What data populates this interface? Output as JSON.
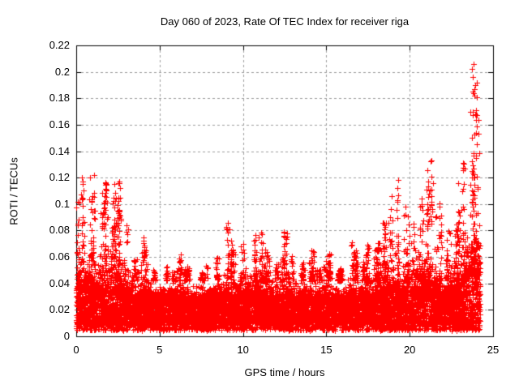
{
  "page": {
    "background_color": "#ffffff",
    "text_color": "#000000"
  },
  "chart_data": {
    "type": "scatter",
    "title": "Day 060 of 2023, Rate Of TEC Index for receiver riga",
    "xlabel": "GPS time / hours",
    "ylabel": "ROTI / TECUs",
    "xlim": [
      0,
      25
    ],
    "ylim": [
      0,
      0.22
    ],
    "xticks": [
      0,
      5,
      10,
      15,
      20,
      25
    ],
    "xtick_labels": [
      "0",
      "5",
      "10",
      "15",
      "20",
      "25"
    ],
    "yticks": [
      0,
      0.02,
      0.04,
      0.06,
      0.08,
      0.1,
      0.12,
      0.14,
      0.16,
      0.18,
      0.2,
      0.22
    ],
    "ytick_labels": [
      "0",
      "0.02",
      "0.04",
      "0.06",
      "0.08",
      "0.1",
      "0.12",
      "0.14",
      "0.16",
      "0.18",
      "0.2",
      "0.22"
    ],
    "grid": true,
    "grid_style": "dashed",
    "grid_color": "#9c9c9c",
    "axis_color": "#000000",
    "legend": "none",
    "series": [
      {
        "name": "ROTI",
        "marker": "+",
        "color": "#ff0000",
        "marker_size_px": 7,
        "time_start_hours": 0,
        "time_end_hours": 24.22,
        "baseline_band": {
          "floor": 0.004,
          "core_low": 0.01,
          "core_high": 0.035,
          "upper": 0.05
        },
        "envelope_halfhour_max": [
          [
            0,
            0.11
          ],
          [
            0.5,
            0.122
          ],
          [
            1,
            0.122
          ],
          [
            1.5,
            0.117
          ],
          [
            2,
            0.085
          ],
          [
            2.5,
            0.117
          ],
          [
            3,
            0.096
          ],
          [
            3.5,
            0.062
          ],
          [
            4,
            0.075
          ],
          [
            4.5,
            0.056
          ],
          [
            5,
            0.052
          ],
          [
            5.5,
            0.058
          ],
          [
            6,
            0.062
          ],
          [
            6.5,
            0.058
          ],
          [
            7,
            0.052
          ],
          [
            7.5,
            0.058
          ],
          [
            8,
            0.052
          ],
          [
            8.5,
            0.066
          ],
          [
            9,
            0.086
          ],
          [
            9.5,
            0.072
          ],
          [
            10,
            0.077
          ],
          [
            10.5,
            0.081
          ],
          [
            11,
            0.081
          ],
          [
            11.5,
            0.066
          ],
          [
            12,
            0.06
          ],
          [
            12.5,
            0.081
          ],
          [
            13,
            0.063
          ],
          [
            13.5,
            0.057
          ],
          [
            14,
            0.067
          ],
          [
            14.5,
            0.057
          ],
          [
            15,
            0.063
          ],
          [
            15.5,
            0.057
          ],
          [
            16,
            0.052
          ],
          [
            16.5,
            0.076
          ],
          [
            17,
            0.067
          ],
          [
            17.5,
            0.071
          ],
          [
            18,
            0.077
          ],
          [
            18.5,
            0.091
          ],
          [
            19,
            0.118
          ],
          [
            19.5,
            0.106
          ],
          [
            20,
            0.097
          ],
          [
            20.5,
            0.112
          ],
          [
            21,
            0.133
          ],
          [
            21.5,
            0.101
          ],
          [
            22,
            0.083
          ],
          [
            22.5,
            0.093
          ],
          [
            23,
            0.13
          ],
          [
            23.5,
            0.206
          ],
          [
            24,
            0.196
          ]
        ],
        "notable_peaks": [
          [
            0.35,
            0.12
          ],
          [
            1.05,
            0.122
          ],
          [
            1.75,
            0.116
          ],
          [
            2.3,
            0.115
          ],
          [
            2.6,
            0.117
          ],
          [
            9.1,
            0.086
          ],
          [
            19.3,
            0.118
          ],
          [
            21.3,
            0.133
          ],
          [
            23.2,
            0.131
          ],
          [
            23.75,
            0.202
          ],
          [
            23.85,
            0.206
          ],
          [
            23.95,
            0.19
          ]
        ]
      }
    ]
  }
}
